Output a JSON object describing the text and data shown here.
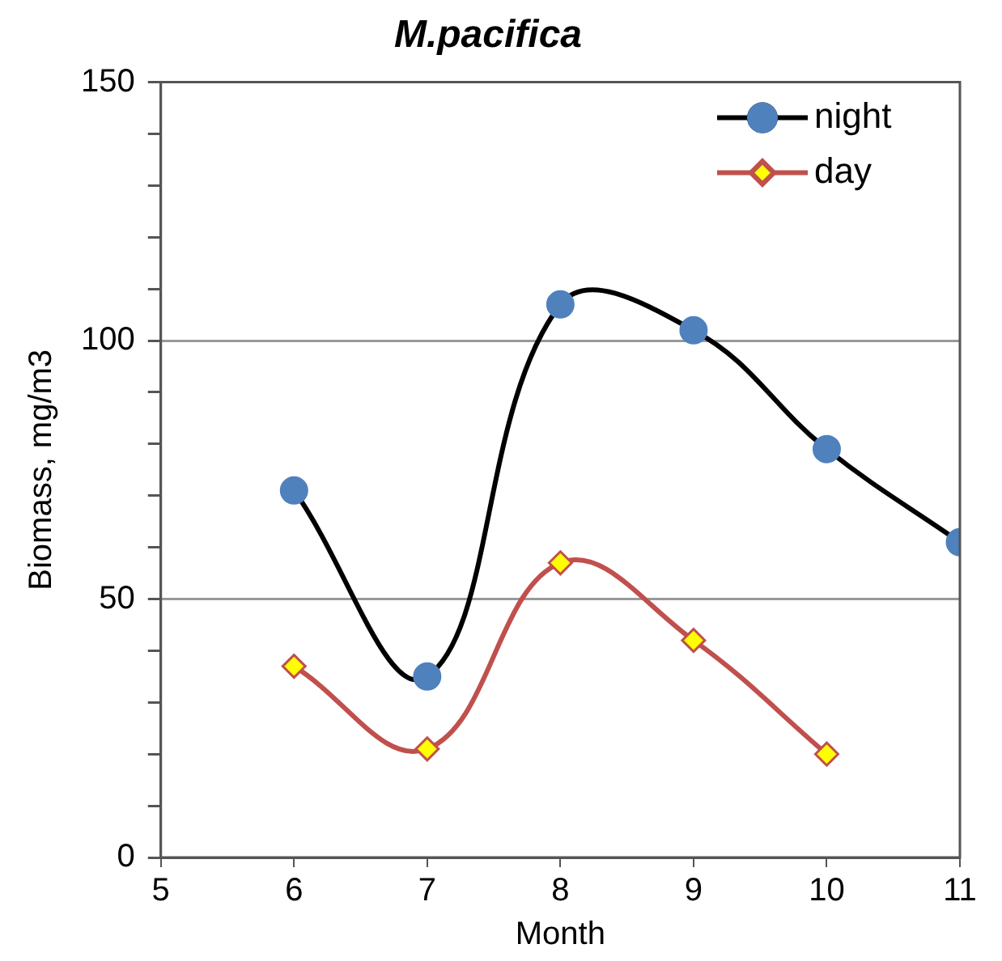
{
  "chart_data": {
    "type": "line",
    "title": "M.pacifica",
    "xlabel": "Month",
    "ylabel": "Biomass, mg/m3",
    "xlim": [
      5,
      11
    ],
    "xticks": [
      5,
      6,
      7,
      8,
      9,
      10,
      11
    ],
    "ylim": [
      0,
      150
    ],
    "yticks": [
      0,
      {
        "value": 10,
        "label": null
      },
      {
        "value": 20,
        "label": null
      },
      {
        "value": 30,
        "label": null
      },
      {
        "value": 40,
        "label": null
      },
      50,
      {
        "value": 60,
        "label": null
      },
      {
        "value": 70,
        "label": null
      },
      {
        "value": 80,
        "label": null
      },
      {
        "value": 90,
        "label": null
      },
      100,
      {
        "value": 110,
        "label": null
      },
      {
        "value": 120,
        "label": null
      },
      {
        "value": 130,
        "label": null
      },
      {
        "value": 140,
        "label": null
      },
      150
    ],
    "grid": "y",
    "legend": "top right",
    "series": [
      {
        "name": "night",
        "color": "#000000",
        "marker": "circle",
        "x": [
          6,
          7,
          8,
          9,
          10,
          11
        ],
        "values": [
          71,
          35,
          107,
          102,
          79,
          61
        ]
      },
      {
        "name": "day",
        "color": "#c0504d",
        "marker": "diamond",
        "x": [
          6,
          7,
          8,
          9,
          10
        ],
        "values": [
          37,
          21,
          57,
          42,
          20
        ]
      }
    ]
  }
}
